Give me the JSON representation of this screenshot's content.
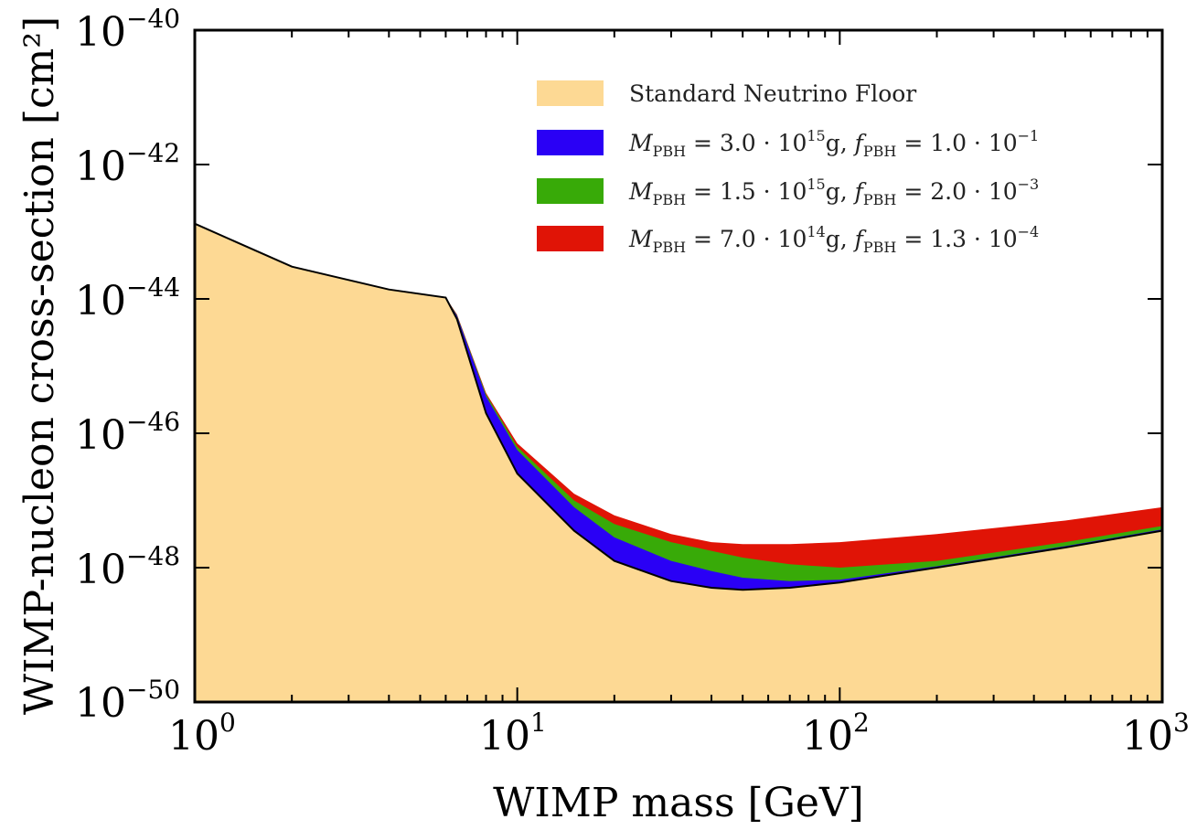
{
  "chart_data": {
    "type": "area",
    "xlabel": "WIMP mass [GeV]",
    "ylabel": "WIMP-nucleon cross-section [cm²]",
    "x_scale": "log",
    "y_scale": "log",
    "xlim": [
      1,
      1000
    ],
    "ylim": [
      1e-50,
      1e-40
    ],
    "grid": false,
    "legend_position": "top-right",
    "x_ticks": [
      {
        "base": "10",
        "exp": "0"
      },
      {
        "base": "10",
        "exp": "1"
      },
      {
        "base": "10",
        "exp": "2"
      },
      {
        "base": "10",
        "exp": "3"
      }
    ],
    "y_ticks": [
      {
        "base": "10",
        "exp": "−50"
      },
      {
        "base": "10",
        "exp": "−48"
      },
      {
        "base": "10",
        "exp": "−46"
      },
      {
        "base": "10",
        "exp": "−44"
      },
      {
        "base": "10",
        "exp": "−42"
      },
      {
        "base": "10",
        "exp": "−40"
      }
    ],
    "x": [
      1,
      2,
      4,
      6,
      6.5,
      8,
      10,
      15,
      20,
      30,
      40,
      50,
      70,
      100,
      200,
      500,
      1000
    ],
    "series": [
      {
        "name": "Standard Neutrino Floor",
        "color": "#fdd994",
        "log10_y": [
          -42.88,
          -43.52,
          -43.86,
          -43.98,
          -44.3,
          -45.7,
          -46.6,
          -47.45,
          -47.9,
          -48.2,
          -48.3,
          -48.33,
          -48.3,
          -48.22,
          -48.0,
          -47.7,
          -47.45
        ]
      },
      {
        "label_parts": {
          "m_sub": "PBH",
          "m_val": "3.0 · 10",
          "m_exp": "15",
          "m_unit": "g,",
          "f_sub": "PBH",
          "f_val": "1.0 · 10",
          "f_exp": "−1"
        },
        "color": "#2a00f5",
        "log10_y": [
          -42.88,
          -43.52,
          -43.86,
          -43.98,
          -44.25,
          -45.45,
          -46.25,
          -47.1,
          -47.55,
          -47.9,
          -48.05,
          -48.15,
          -48.2,
          -48.18,
          -47.98,
          -47.68,
          -47.43
        ]
      },
      {
        "label_parts": {
          "m_sub": "PBH",
          "m_val": "1.5 · 10",
          "m_exp": "15",
          "m_unit": "g,",
          "f_sub": "PBH",
          "f_val": "2.0 · 10",
          "f_exp": "−3"
        },
        "color": "#38aa08",
        "log10_y": [
          -42.88,
          -43.52,
          -43.86,
          -43.98,
          -44.24,
          -45.42,
          -46.2,
          -47.0,
          -47.35,
          -47.62,
          -47.75,
          -47.85,
          -47.95,
          -48.0,
          -47.9,
          -47.62,
          -47.38
        ]
      },
      {
        "label_parts": {
          "m_sub": "PBH",
          "m_val": "7.0 · 10",
          "m_exp": "14",
          "m_unit": "g,",
          "f_sub": "PBH",
          "f_val": "1.3 · 10",
          "f_exp": "−4"
        },
        "color": "#e01406",
        "log10_y": [
          -42.88,
          -43.52,
          -43.86,
          -43.98,
          -44.23,
          -45.4,
          -46.15,
          -46.9,
          -47.22,
          -47.5,
          -47.62,
          -47.65,
          -47.65,
          -47.62,
          -47.5,
          -47.3,
          -47.1
        ]
      }
    ]
  }
}
